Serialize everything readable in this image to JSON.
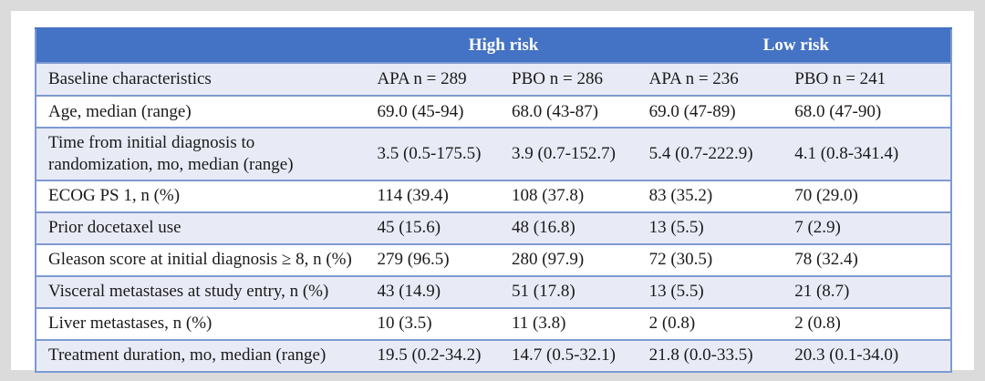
{
  "colors": {
    "header_bg": "#4472c4",
    "header_text": "#ffffff",
    "stripe_bg": "#e8ebf6",
    "row_bg": "#ffffff",
    "border": "#7d9ad0",
    "frame_bg": "#dbdbdb",
    "panel_bg": "#ffffff",
    "text": "#1a1a1a"
  },
  "table": {
    "group_headers": [
      {
        "label": "High risk",
        "span": 2
      },
      {
        "label": "Low risk",
        "span": 2
      }
    ],
    "columns": [
      "Baseline characteristics",
      "APA n = 289",
      "PBO n = 286",
      "APA n = 236",
      "PBO n = 241"
    ],
    "rows": [
      {
        "label": "Age, median (range)",
        "values": [
          "69.0 (45-94)",
          "68.0 (43-87)",
          "69.0 (47-89)",
          "68.0 (47-90)"
        ]
      },
      {
        "label": "Time from initial diagnosis to randomization, mo, median (range)",
        "values": [
          "3.5 (0.5-175.5)",
          "3.9 (0.7-152.7)",
          "5.4 (0.7-222.9)",
          "4.1 (0.8-341.4)"
        ]
      },
      {
        "label": "ECOG PS 1, n (%)",
        "values": [
          "114 (39.4)",
          "108 (37.8)",
          "83 (35.2)",
          "70 (29.0)"
        ]
      },
      {
        "label": "Prior docetaxel use",
        "values": [
          "45 (15.6)",
          "48 (16.8)",
          "13 (5.5)",
          "7 (2.9)"
        ]
      },
      {
        "label": "Gleason score at initial diagnosis ≥ 8, n (%)",
        "values": [
          "279 (96.5)",
          "280 (97.9)",
          "72 (30.5)",
          "78 (32.4)"
        ]
      },
      {
        "label": "Visceral metastases at study entry, n (%)",
        "values": [
          "43 (14.9)",
          "51 (17.8)",
          "13 (5.5)",
          "21 (8.7)"
        ]
      },
      {
        "label": "Liver metastases, n (%)",
        "values": [
          "10 (3.5)",
          "11 (3.8)",
          "2 (0.8)",
          "2 (0.8)"
        ]
      },
      {
        "label": "Treatment duration, mo, median (range)",
        "values": [
          "19.5 (0.2-34.2)",
          "14.7 (0.5-32.1)",
          "21.8 (0.0-33.5)",
          "20.3 (0.1-34.0)"
        ]
      }
    ]
  }
}
